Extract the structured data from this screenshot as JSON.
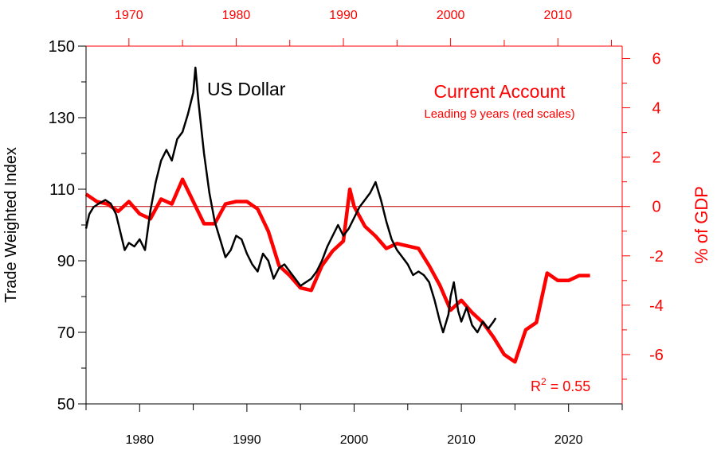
{
  "chart_data": {
    "type": "line",
    "annotations": {
      "usd_label": "US Dollar",
      "ca_title": "Current Account",
      "ca_subtitle": "Leading 9 years  (red scales)",
      "r2_prefix": "R",
      "r2_sup": "2",
      "r2_value": " = 0.55"
    },
    "axes": {
      "left": {
        "label": "Trade Weighted Index",
        "range": [
          50,
          150
        ],
        "ticks": [
          "50",
          "70",
          "90",
          "110",
          "130",
          "150"
        ],
        "color": "#000000"
      },
      "right": {
        "label": "% of GDP",
        "range": [
          -8,
          6.5
        ],
        "ticks": [
          "-6",
          "-4",
          "-2",
          "0",
          "2",
          "4",
          "6"
        ],
        "color": "#ff0000"
      },
      "bottom": {
        "range": [
          1975,
          2025
        ],
        "ticks": [
          "1980",
          "1990",
          "2000",
          "2010",
          "2020"
        ],
        "color": "#000000"
      },
      "top": {
        "range": [
          1966,
          2016
        ],
        "ticks": [
          "1970",
          "1980",
          "1990",
          "2000",
          "2010"
        ],
        "color": "#ff0000"
      }
    },
    "zero_line": 0,
    "series": [
      {
        "name": "US Dollar",
        "axis": "left-bottom",
        "color": "#000000",
        "points": [
          [
            1975.0,
            99
          ],
          [
            1975.3,
            103
          ],
          [
            1975.7,
            105
          ],
          [
            1976.2,
            106
          ],
          [
            1976.8,
            107
          ],
          [
            1977.3,
            106
          ],
          [
            1977.8,
            103
          ],
          [
            1978.2,
            98
          ],
          [
            1978.6,
            93
          ],
          [
            1979.0,
            95
          ],
          [
            1979.5,
            94
          ],
          [
            1980.0,
            96
          ],
          [
            1980.5,
            93
          ],
          [
            1981.0,
            104
          ],
          [
            1981.5,
            112
          ],
          [
            1982.0,
            118
          ],
          [
            1982.5,
            121
          ],
          [
            1983.0,
            118
          ],
          [
            1983.5,
            124
          ],
          [
            1984.0,
            126
          ],
          [
            1984.5,
            131
          ],
          [
            1985.0,
            137
          ],
          [
            1985.2,
            144
          ],
          [
            1985.5,
            134
          ],
          [
            1986.0,
            120
          ],
          [
            1986.5,
            109
          ],
          [
            1987.0,
            101
          ],
          [
            1987.5,
            96
          ],
          [
            1988.0,
            91
          ],
          [
            1988.5,
            93
          ],
          [
            1989.0,
            97
          ],
          [
            1989.5,
            96
          ],
          [
            1990.0,
            92
          ],
          [
            1990.5,
            89
          ],
          [
            1991.0,
            87
          ],
          [
            1991.5,
            92
          ],
          [
            1992.0,
            90
          ],
          [
            1992.5,
            85
          ],
          [
            1993.0,
            88
          ],
          [
            1993.5,
            89
          ],
          [
            1994.0,
            87
          ],
          [
            1994.5,
            85
          ],
          [
            1995.0,
            83
          ],
          [
            1995.5,
            84
          ],
          [
            1996.0,
            85
          ],
          [
            1996.5,
            87
          ],
          [
            1997.0,
            90
          ],
          [
            1997.5,
            94
          ],
          [
            1998.0,
            97
          ],
          [
            1998.5,
            100
          ],
          [
            1999.0,
            97
          ],
          [
            1999.5,
            99
          ],
          [
            2000.0,
            102
          ],
          [
            2000.5,
            105
          ],
          [
            2001.0,
            107
          ],
          [
            2001.5,
            109
          ],
          [
            2002.0,
            112
          ],
          [
            2002.5,
            107
          ],
          [
            2003.0,
            101
          ],
          [
            2003.5,
            96
          ],
          [
            2004.0,
            93
          ],
          [
            2004.5,
            91
          ],
          [
            2005.0,
            89
          ],
          [
            2005.5,
            86
          ],
          [
            2006.0,
            87
          ],
          [
            2006.5,
            86
          ],
          [
            2007.0,
            84
          ],
          [
            2007.5,
            79
          ],
          [
            2008.0,
            73
          ],
          [
            2008.3,
            70
          ],
          [
            2008.8,
            75
          ],
          [
            2009.0,
            80
          ],
          [
            2009.3,
            84
          ],
          [
            2009.7,
            76
          ],
          [
            2010.0,
            73
          ],
          [
            2010.5,
            77
          ],
          [
            2011.0,
            72
          ],
          [
            2011.5,
            70
          ],
          [
            2012.0,
            73
          ],
          [
            2012.5,
            71
          ],
          [
            2013.0,
            73
          ],
          [
            2013.2,
            74
          ]
        ]
      },
      {
        "name": "Current Account",
        "axis": "right-top",
        "color": "#ff0000",
        "points": [
          [
            1966.0,
            0.5
          ],
          [
            1967.0,
            0.2
          ],
          [
            1968.0,
            0.1
          ],
          [
            1969.0,
            -0.2
          ],
          [
            1970.0,
            0.2
          ],
          [
            1971.0,
            -0.3
          ],
          [
            1972.0,
            -0.5
          ],
          [
            1973.0,
            0.3
          ],
          [
            1974.0,
            0.1
          ],
          [
            1975.0,
            1.1
          ],
          [
            1976.0,
            0.2
          ],
          [
            1977.0,
            -0.7
          ],
          [
            1978.0,
            -0.7
          ],
          [
            1979.0,
            0.1
          ],
          [
            1980.0,
            0.2
          ],
          [
            1981.0,
            0.2
          ],
          [
            1982.0,
            -0.1
          ],
          [
            1983.0,
            -1.0
          ],
          [
            1984.0,
            -2.4
          ],
          [
            1985.0,
            -2.8
          ],
          [
            1986.0,
            -3.3
          ],
          [
            1987.0,
            -3.4
          ],
          [
            1988.0,
            -2.4
          ],
          [
            1989.0,
            -1.8
          ],
          [
            1990.0,
            -1.4
          ],
          [
            1990.6,
            0.7
          ],
          [
            1991.0,
            0.0
          ],
          [
            1992.0,
            -0.8
          ],
          [
            1993.0,
            -1.2
          ],
          [
            1994.0,
            -1.7
          ],
          [
            1995.0,
            -1.5
          ],
          [
            1996.0,
            -1.6
          ],
          [
            1997.0,
            -1.7
          ],
          [
            1998.0,
            -2.4
          ],
          [
            1999.0,
            -3.2
          ],
          [
            2000.0,
            -4.2
          ],
          [
            2001.0,
            -3.8
          ],
          [
            2002.0,
            -4.3
          ],
          [
            2003.0,
            -4.7
          ],
          [
            2004.0,
            -5.3
          ],
          [
            2005.0,
            -6.0
          ],
          [
            2006.0,
            -6.3
          ],
          [
            2007.0,
            -5.0
          ],
          [
            2008.0,
            -4.7
          ],
          [
            2009.0,
            -2.7
          ],
          [
            2010.0,
            -3.0
          ],
          [
            2011.0,
            -3.0
          ],
          [
            2012.0,
            -2.8
          ],
          [
            2013.0,
            -2.8
          ]
        ]
      }
    ]
  }
}
